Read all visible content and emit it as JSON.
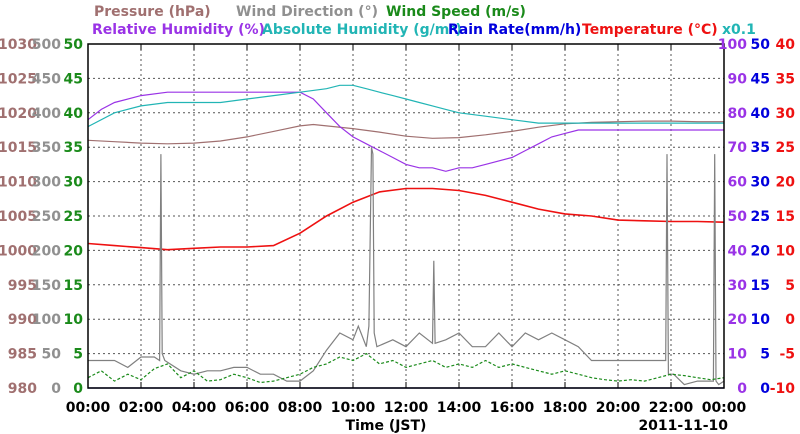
{
  "chart_data": {
    "type": "line",
    "title_segments": [
      {
        "text": "Pressure (hPa)",
        "color": "#a07070"
      },
      {
        "text": "Wind Direction (°)",
        "color": "#909090"
      },
      {
        "text": "Wind Speed (m/s)",
        "color": "#1a8a1a"
      }
    ],
    "subtitle_segments": [
      {
        "text": "Relative Humidity (%)",
        "color": "#9a33e6"
      },
      {
        "text": "Absolute Humidity (g/m³)",
        "color": "#22b5b5"
      },
      {
        "text": "Rain Rate(mm/h)",
        "color": "#0000dd"
      },
      {
        "text": "Temperature (°C)",
        "color": "#ee1111"
      },
      {
        "text": "x0.1",
        "color": "#22b5b5"
      }
    ],
    "xlabel": "Time (JST)",
    "date_label": "2011-11-10",
    "x_ticks": [
      "00:00",
      "02:00",
      "04:00",
      "06:00",
      "08:00",
      "10:00",
      "12:00",
      "14:00",
      "16:00",
      "18:00",
      "20:00",
      "22:00",
      "00:00"
    ],
    "grid": true,
    "axes": {
      "pressure": {
        "label": "Pressure (hPa)",
        "range": [
          980,
          1030
        ],
        "ticks": [
          "980",
          "985",
          "990",
          "995",
          "1000",
          "1005",
          "1010",
          "1015",
          "1020",
          "1025",
          "1030"
        ],
        "color": "#a07070"
      },
      "wind_direction": {
        "label": "Wind Direction (°)",
        "range": [
          0,
          500
        ],
        "ticks": [
          "0",
          "50",
          "100",
          "150",
          "200",
          "250",
          "300",
          "350",
          "400",
          "450",
          "500"
        ],
        "color": "#909090"
      },
      "wind_speed": {
        "label": "Wind Speed (m/s)",
        "range": [
          0,
          50
        ],
        "ticks": [
          "0",
          "5",
          "10",
          "15",
          "20",
          "25",
          "30",
          "35",
          "40",
          "45",
          "50"
        ],
        "color": "#1a8a1a"
      },
      "relative_humidity": {
        "label": "Relative Humidity (%)",
        "range": [
          0,
          100
        ],
        "ticks": [
          "0",
          "10",
          "20",
          "30",
          "40",
          "50",
          "60",
          "70",
          "80",
          "90",
          "100"
        ],
        "color": "#9a33e6"
      },
      "rain_rate": {
        "label": "Rain Rate(mm/h)",
        "range": [
          0,
          50
        ],
        "ticks": [
          "0",
          "5",
          "10",
          "15",
          "20",
          "25",
          "30",
          "35",
          "40",
          "45",
          "50"
        ],
        "color": "#0000dd"
      },
      "temperature": {
        "label": "Temperature (°C)",
        "range": [
          -10,
          40
        ],
        "ticks": [
          "-10",
          "-5",
          "0",
          "5",
          "10",
          "15",
          "20",
          "25",
          "30",
          "35",
          "40"
        ],
        "color": "#ee1111"
      }
    },
    "series": [
      {
        "name": "Pressure (hPa)",
        "axis": "pressure",
        "color": "#a07070",
        "x": [
          0,
          1,
          2,
          3,
          4,
          5,
          6,
          7,
          8,
          8.5,
          9,
          10,
          11,
          12,
          13,
          14,
          15,
          16,
          17,
          18,
          19,
          20,
          21,
          22,
          23,
          24
        ],
        "y": [
          1016.0,
          1015.8,
          1015.6,
          1015.5,
          1015.6,
          1015.9,
          1016.5,
          1017.3,
          1018.1,
          1018.3,
          1018.1,
          1017.7,
          1017.2,
          1016.6,
          1016.3,
          1016.4,
          1016.8,
          1017.3,
          1017.9,
          1018.4,
          1018.6,
          1018.7,
          1018.8,
          1018.8,
          1018.7,
          1018.7
        ]
      },
      {
        "name": "Relative Humidity (%)",
        "axis": "relative_humidity",
        "color": "#9a33e6",
        "x": [
          0,
          0.5,
          1,
          2,
          3,
          4,
          5,
          6,
          7,
          8,
          8.5,
          9,
          9.5,
          10,
          10.5,
          11,
          11.5,
          12,
          12.5,
          13,
          13.5,
          14,
          14.5,
          15,
          16,
          16.5,
          17,
          17.5,
          18,
          18.5,
          19,
          20,
          21,
          22,
          23,
          24
        ],
        "y": [
          78,
          81,
          83,
          85,
          86,
          86,
          86,
          86,
          86,
          86,
          84,
          80,
          76,
          73,
          71,
          69,
          67,
          65,
          64,
          64,
          63,
          64,
          64,
          65,
          67,
          69,
          71,
          73,
          74,
          75,
          75,
          75,
          75,
          75,
          75,
          75
        ]
      },
      {
        "name": "Absolute Humidity (g/m³)",
        "axis": "relative_humidity",
        "color": "#22b5b5",
        "x": [
          0,
          1,
          2,
          3,
          4,
          5,
          6,
          7,
          8,
          9,
          9.5,
          10,
          10.5,
          11,
          11.5,
          12,
          12.5,
          13,
          13.5,
          14,
          15,
          16,
          17,
          18,
          19,
          20,
          21,
          22,
          23,
          24
        ],
        "y": [
          76,
          80,
          82,
          83,
          83,
          83,
          84,
          85,
          86,
          87,
          88,
          88,
          87,
          86,
          85,
          84,
          83,
          82,
          81,
          80,
          79,
          78,
          77,
          77,
          77,
          77,
          77,
          77,
          77,
          77
        ]
      },
      {
        "name": "Temperature (°C)",
        "axis": "temperature",
        "color": "#ee1111",
        "x": [
          0,
          1,
          2,
          3,
          4,
          5,
          6,
          7,
          8,
          9,
          10,
          11,
          12,
          13,
          14,
          15,
          16,
          17,
          18,
          19,
          20,
          21,
          22,
          23,
          24
        ],
        "y": [
          11.0,
          10.7,
          10.4,
          10.1,
          10.3,
          10.5,
          10.5,
          10.7,
          12.5,
          15.0,
          17.0,
          18.5,
          19.0,
          19.0,
          18.7,
          18.0,
          17.0,
          16.0,
          15.3,
          15.0,
          14.4,
          14.3,
          14.2,
          14.2,
          14.1
        ]
      },
      {
        "name": "Wind Direction (°)",
        "axis": "wind_direction",
        "color": "#808080",
        "x": [
          0,
          0.5,
          1,
          1.5,
          2,
          2.5,
          2.7,
          2.75,
          2.8,
          2.9,
          3.5,
          4,
          4.5,
          5,
          5.5,
          6,
          6.5,
          7,
          7.5,
          8,
          8.5,
          9,
          9.5,
          10,
          10.2,
          10.3,
          10.5,
          10.6,
          10.7,
          10.75,
          10.8,
          10.9,
          11.5,
          12,
          12.5,
          13,
          13.05,
          13.1,
          13.5,
          14,
          14.5,
          15,
          15.5,
          16,
          16.5,
          17,
          17.5,
          18,
          18.5,
          19,
          19.5,
          20,
          20.5,
          21,
          21.5,
          21.8,
          21.85,
          21.9,
          22.1,
          22.5,
          23,
          23.5,
          23.6,
          23.65,
          23.7,
          23.8,
          24
        ],
        "y": [
          40,
          40,
          40,
          30,
          45,
          45,
          40,
          340,
          50,
          40,
          25,
          20,
          25,
          25,
          30,
          30,
          20,
          20,
          10,
          10,
          25,
          55,
          80,
          70,
          90,
          80,
          60,
          90,
          350,
          340,
          80,
          60,
          70,
          60,
          80,
          65,
          185,
          65,
          70,
          80,
          60,
          60,
          80,
          60,
          80,
          70,
          80,
          70,
          60,
          40,
          40,
          40,
          40,
          40,
          40,
          40,
          340,
          20,
          20,
          5,
          10,
          10,
          10,
          340,
          10,
          5,
          10
        ]
      },
      {
        "name": "Wind Speed (m/s)",
        "axis": "wind_speed",
        "color": "#1a8a1a",
        "dashed": true,
        "x": [
          0,
          0.5,
          1,
          1.5,
          2,
          2.5,
          3,
          3.5,
          4,
          4.5,
          5,
          5.5,
          6,
          6.5,
          7,
          7.5,
          8,
          8.5,
          9,
          9.5,
          10,
          10.5,
          11,
          11.5,
          12,
          12.5,
          13,
          13.5,
          14,
          14.5,
          15,
          15.5,
          16,
          16.5,
          17,
          17.5,
          18,
          18.5,
          19,
          19.5,
          20,
          20.5,
          21,
          21.5,
          22,
          22.5,
          23,
          23.5,
          24
        ],
        "y": [
          1.5,
          2.5,
          1.0,
          2.0,
          1.2,
          2.8,
          3.5,
          1.5,
          2.5,
          1.0,
          1.2,
          2.0,
          1.5,
          0.8,
          1.0,
          1.5,
          2.0,
          3.0,
          3.5,
          4.5,
          4.0,
          5.0,
          3.5,
          4.0,
          3.0,
          3.5,
          4.0,
          3.0,
          3.5,
          3.0,
          4.0,
          3.0,
          3.5,
          3.0,
          2.5,
          2.0,
          2.5,
          2.0,
          1.5,
          1.2,
          1.0,
          1.2,
          1.0,
          1.5,
          2.0,
          1.8,
          1.5,
          1.2,
          1.5
        ]
      },
      {
        "name": "Rain Rate(mm/h)",
        "axis": "rain_rate",
        "color": "#0000dd",
        "x": [
          0,
          24
        ],
        "y": [
          0,
          0
        ]
      }
    ]
  }
}
